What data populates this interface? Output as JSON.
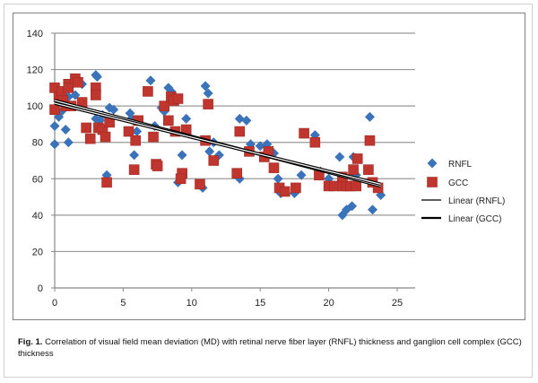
{
  "chart_data": {
    "type": "scatter",
    "title": "",
    "xlabel": "",
    "ylabel": "",
    "xlim": [
      0,
      26
    ],
    "ylim": [
      0,
      140
    ],
    "x_ticks": [
      "0",
      "5",
      "10",
      "15",
      "20",
      "25"
    ],
    "y_ticks": [
      "0",
      "20",
      "40",
      "60",
      "80",
      "100",
      "120",
      "140"
    ],
    "grid": "horizontal",
    "legend_position": "right",
    "series": [
      {
        "name": "RNFL",
        "marker": "diamond",
        "color": "#3a73b9",
        "points": [
          [
            0,
            79
          ],
          [
            0,
            89
          ],
          [
            0.3,
            94
          ],
          [
            0.5,
            97
          ],
          [
            0.7,
            100
          ],
          [
            0.8,
            87
          ],
          [
            1,
            80
          ],
          [
            1,
            105
          ],
          [
            1.5,
            106
          ],
          [
            2,
            112
          ],
          [
            3,
            117
          ],
          [
            3.1,
            116
          ],
          [
            3,
            93
          ],
          [
            3.3,
            92
          ],
          [
            3.5,
            95
          ],
          [
            3.8,
            62
          ],
          [
            4,
            99
          ],
          [
            4.3,
            98
          ],
          [
            5.5,
            96
          ],
          [
            5.6,
            93
          ],
          [
            5.8,
            73
          ],
          [
            6,
            86
          ],
          [
            7,
            114
          ],
          [
            7.3,
            89
          ],
          [
            7.8,
            99
          ],
          [
            8,
            97
          ],
          [
            8.3,
            110
          ],
          [
            8.5,
            108
          ],
          [
            8.8,
            103
          ],
          [
            9,
            58
          ],
          [
            9.3,
            73
          ],
          [
            9.6,
            93
          ],
          [
            10.8,
            55
          ],
          [
            11,
            111
          ],
          [
            11.2,
            107
          ],
          [
            11.3,
            75
          ],
          [
            11.6,
            80
          ],
          [
            12,
            73
          ],
          [
            13.5,
            93
          ],
          [
            13.5,
            60
          ],
          [
            14,
            92
          ],
          [
            14.3,
            79
          ],
          [
            15,
            78
          ],
          [
            15.5,
            79
          ],
          [
            16,
            74
          ],
          [
            16.3,
            60
          ],
          [
            16.5,
            52
          ],
          [
            17.5,
            52
          ],
          [
            18,
            62
          ],
          [
            19,
            84
          ],
          [
            19.4,
            64
          ],
          [
            20,
            60
          ],
          [
            20.8,
            72
          ],
          [
            21,
            40
          ],
          [
            21.3,
            43
          ],
          [
            21.7,
            45
          ],
          [
            21.8,
            72
          ],
          [
            22,
            62
          ],
          [
            23,
            94
          ],
          [
            23.2,
            43
          ],
          [
            23.5,
            56
          ],
          [
            23.8,
            51
          ]
        ]
      },
      {
        "name": "GCC",
        "marker": "square",
        "color": "#c0362f",
        "points": [
          [
            0,
            110
          ],
          [
            0,
            98
          ],
          [
            0.3,
            105
          ],
          [
            0.5,
            108
          ],
          [
            0.6,
            103
          ],
          [
            0.8,
            100
          ],
          [
            1,
            112
          ],
          [
            1,
            110
          ],
          [
            1.2,
            100
          ],
          [
            1.5,
            115
          ],
          [
            1.7,
            113
          ],
          [
            2,
            102
          ],
          [
            2.3,
            88
          ],
          [
            2.6,
            82
          ],
          [
            3,
            110
          ],
          [
            3,
            106
          ],
          [
            3.2,
            88
          ],
          [
            3.5,
            87
          ],
          [
            3.7,
            83
          ],
          [
            3.8,
            58
          ],
          [
            4,
            91
          ],
          [
            5.4,
            86
          ],
          [
            5.8,
            65
          ],
          [
            5.9,
            81
          ],
          [
            6.1,
            92
          ],
          [
            6.8,
            108
          ],
          [
            7.2,
            83
          ],
          [
            7.4,
            68
          ],
          [
            7.5,
            67
          ],
          [
            8,
            100
          ],
          [
            8.3,
            92
          ],
          [
            8.5,
            105
          ],
          [
            8.7,
            103
          ],
          [
            8.8,
            86
          ],
          [
            9,
            104
          ],
          [
            9.3,
            63
          ],
          [
            9.2,
            60
          ],
          [
            9.6,
            87
          ],
          [
            10.6,
            57
          ],
          [
            11,
            81
          ],
          [
            11.2,
            101
          ],
          [
            11.6,
            70
          ],
          [
            13.3,
            63
          ],
          [
            13.5,
            86
          ],
          [
            14.2,
            75
          ],
          [
            15.3,
            72
          ],
          [
            15.6,
            75
          ],
          [
            16,
            66
          ],
          [
            16.4,
            55
          ],
          [
            16.8,
            53
          ],
          [
            17.6,
            55
          ],
          [
            18.2,
            85
          ],
          [
            19,
            80
          ],
          [
            19.3,
            62
          ],
          [
            20,
            56
          ],
          [
            20.4,
            56
          ],
          [
            21,
            56
          ],
          [
            21.3,
            56
          ],
          [
            21.6,
            56
          ],
          [
            22,
            56
          ],
          [
            21.8,
            65
          ],
          [
            22.1,
            71
          ],
          [
            21,
            61
          ],
          [
            22.9,
            65
          ],
          [
            23,
            81
          ],
          [
            23.2,
            58
          ],
          [
            23.6,
            55
          ]
        ]
      }
    ],
    "trendlines": [
      {
        "name": "Linear (RNFL)",
        "from": [
          0,
          103
        ],
        "to": [
          23.8,
          56
        ]
      },
      {
        "name": "Linear (GCC)",
        "from": [
          0,
          101.5
        ],
        "to": [
          23.8,
          57
        ]
      }
    ]
  },
  "caption": {
    "label": "Fig. 1.",
    "text": " Correlation of visual field mean deviation (MD) with retinal nerve fiber layer (RNFL) thickness and ganglion cell complex (GCC) thickness"
  }
}
